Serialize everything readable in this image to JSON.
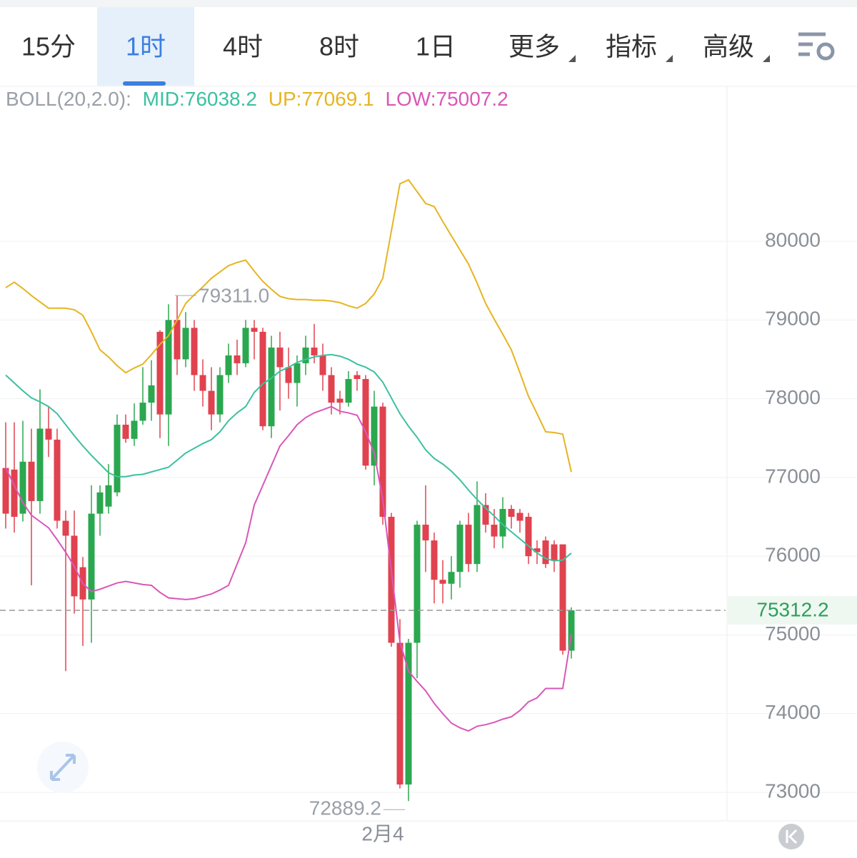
{
  "tabs": [
    "15分",
    "1时",
    "4时",
    "8时",
    "1日",
    "更多",
    "指标",
    "高级"
  ],
  "active_tab": 1,
  "indicator": {
    "name": "BOLL(20,2.0):",
    "mid": "MID:76038.2",
    "up": "UP:77069.1",
    "low": "LOW:75007.2"
  },
  "chart_data": {
    "type": "candlestick",
    "up_color": "#2ba74f",
    "down_color": "#e0424f",
    "categories": [
      null,
      null,
      null,
      null,
      null,
      null,
      null,
      null,
      null,
      null,
      null,
      null,
      null,
      null,
      null,
      null,
      null,
      null,
      null,
      null,
      null,
      null,
      null,
      null,
      null,
      null,
      null,
      null,
      null,
      null,
      null,
      null,
      null,
      null,
      null,
      null,
      null,
      null,
      null,
      null,
      null,
      null,
      null,
      null,
      "2月4",
      null,
      null,
      null,
      null,
      null,
      null,
      null,
      null,
      null,
      null,
      null,
      null,
      null,
      null,
      null,
      null,
      null,
      null,
      null,
      null,
      null,
      null
    ],
    "open": [
      77120,
      77100,
      76540,
      77200,
      76700,
      77620,
      77480,
      76450,
      76260,
      75860,
      75450,
      76540,
      76630,
      76810,
      77670,
      77490,
      77720,
      77950,
      78850,
      77800,
      79000,
      78500,
      78900,
      78300,
      78100,
      77800,
      78300,
      78550,
      78450,
      78900,
      78850,
      77650,
      78650,
      78400,
      78200,
      78450,
      78650,
      78550,
      78300,
      78000,
      77950,
      78300,
      78250,
      77150,
      77900,
      76500,
      74900,
      73100,
      74900,
      76400,
      76200,
      75700,
      75650,
      75800,
      76400,
      75900,
      76650,
      76400,
      76250,
      76600,
      76550,
      76500,
      76100,
      76200,
      76150,
      76150,
      74800
    ],
    "high": [
      77700,
      77700,
      77720,
      77620,
      78120,
      77900,
      77620,
      76580,
      76580,
      75990,
      76900,
      76900,
      77170,
      77800,
      77800,
      77940,
      78400,
      78490,
      78870,
      79200,
      79311.0,
      79100,
      79000,
      78500,
      78400,
      78400,
      78700,
      78750,
      79000,
      79000,
      78900,
      78800,
      78850,
      78650,
      78550,
      78800,
      78950,
      78700,
      78400,
      78100,
      78350,
      78350,
      78300,
      78100,
      77950,
      76550,
      75200,
      74950,
      76450,
      76900,
      76300,
      75950,
      76000,
      76450,
      76550,
      76950,
      76800,
      76600,
      76750,
      76650,
      76600,
      76550,
      76200,
      76250,
      76200,
      76150,
      75350
    ],
    "low": [
      76350,
      76300,
      76440,
      75630,
      76540,
      77260,
      76350,
      74540,
      75270,
      74860,
      74900,
      76260,
      76540,
      76760,
      77440,
      77400,
      77670,
      77720,
      77500,
      77400,
      78300,
      78400,
      78100,
      77900,
      77600,
      77700,
      78200,
      78300,
      78400,
      78500,
      77600,
      77500,
      77850,
      78000,
      77900,
      78300,
      78450,
      78100,
      77800,
      77800,
      77900,
      78100,
      77100,
      76900,
      76400,
      74850,
      73050,
      72889.2,
      74450,
      75800,
      75400,
      75400,
      75450,
      75600,
      75800,
      75800,
      76300,
      76100,
      76100,
      76350,
      76300,
      75900,
      75900,
      75850,
      75800,
      74750,
      74700
    ],
    "close": [
      76540,
      76500,
      77200,
      76700,
      77620,
      77480,
      76450,
      76260,
      75490,
      75450,
      76540,
      76810,
      76900,
      77670,
      77490,
      77720,
      77950,
      78170,
      77800,
      79000,
      78500,
      78900,
      78300,
      78100,
      77800,
      78300,
      78550,
      78450,
      78900,
      78850,
      77650,
      78650,
      78400,
      78200,
      78450,
      78650,
      78550,
      78300,
      77950,
      77950,
      78250,
      78250,
      77150,
      77900,
      76500,
      74900,
      73100,
      74900,
      76400,
      76200,
      75700,
      75650,
      75800,
      76400,
      75900,
      76650,
      76400,
      76250,
      76600,
      76500,
      76450,
      76000,
      76050,
      75900,
      75950,
      74800,
      75312.2
    ],
    "bands": [
      {
        "color": "#e6b422",
        "values": [
          79410,
          79480,
          79400,
          79310,
          79230,
          79150,
          79150,
          79150,
          79130,
          79060,
          78850,
          78620,
          78530,
          78420,
          78330,
          78390,
          78440,
          78560,
          78690,
          78800,
          79000,
          79210,
          79320,
          79420,
          79530,
          79610,
          79690,
          79730,
          79760,
          79620,
          79490,
          79390,
          79300,
          79270,
          79260,
          79260,
          79250,
          79250,
          79240,
          79220,
          79180,
          79150,
          79210,
          79330,
          79530,
          80130,
          80730,
          80780,
          80630,
          80480,
          80440,
          80250,
          80070,
          79890,
          79710,
          79470,
          79210,
          79010,
          78820,
          78620,
          78330,
          78030,
          77810,
          77580,
          77570,
          77550,
          77069.1
        ]
      },
      {
        "color": "#3cc0a0",
        "values": [
          78300,
          78200,
          78100,
          78010,
          77960,
          77900,
          77810,
          77670,
          77530,
          77400,
          77280,
          77170,
          77060,
          77010,
          77010,
          77030,
          77040,
          77070,
          77100,
          77130,
          77220,
          77310,
          77370,
          77430,
          77480,
          77580,
          77720,
          77820,
          77900,
          78080,
          78190,
          78260,
          78350,
          78400,
          78460,
          78500,
          78530,
          78550,
          78560,
          78540,
          78500,
          78440,
          78400,
          78340,
          78210,
          78010,
          77810,
          77650,
          77510,
          77350,
          77240,
          77170,
          77080,
          76970,
          76840,
          76720,
          76610,
          76510,
          76400,
          76310,
          76220,
          76130,
          76040,
          75970,
          75940,
          75950,
          76038.2
        ]
      },
      {
        "color": "#d957b8",
        "values": [
          77120,
          76900,
          76680,
          76520,
          76440,
          76360,
          76210,
          76050,
          75870,
          75650,
          75550,
          75580,
          75620,
          75660,
          75680,
          75660,
          75640,
          75630,
          75540,
          75470,
          75460,
          75450,
          75460,
          75490,
          75520,
          75570,
          75630,
          75900,
          76170,
          76650,
          76900,
          77150,
          77400,
          77530,
          77670,
          77760,
          77820,
          77860,
          77900,
          77840,
          77820,
          77790,
          77580,
          77310,
          76720,
          75810,
          74910,
          74540,
          74410,
          74290,
          74130,
          74000,
          73880,
          73820,
          73780,
          73840,
          73860,
          73890,
          73930,
          73960,
          74040,
          74150,
          74200,
          74320,
          74320,
          74320,
          75007.2
        ]
      }
    ],
    "ylim": [
      72638,
      81976
    ],
    "yticks": [
      73000,
      74000,
      75000,
      76000,
      77000,
      78000,
      79000,
      80000
    ],
    "grid": true,
    "max_label": {
      "value": 79311.0,
      "label": "79311.0"
    },
    "min_label": {
      "value": 72889.2,
      "label": "72889.2"
    },
    "last_price": 75312.2
  }
}
